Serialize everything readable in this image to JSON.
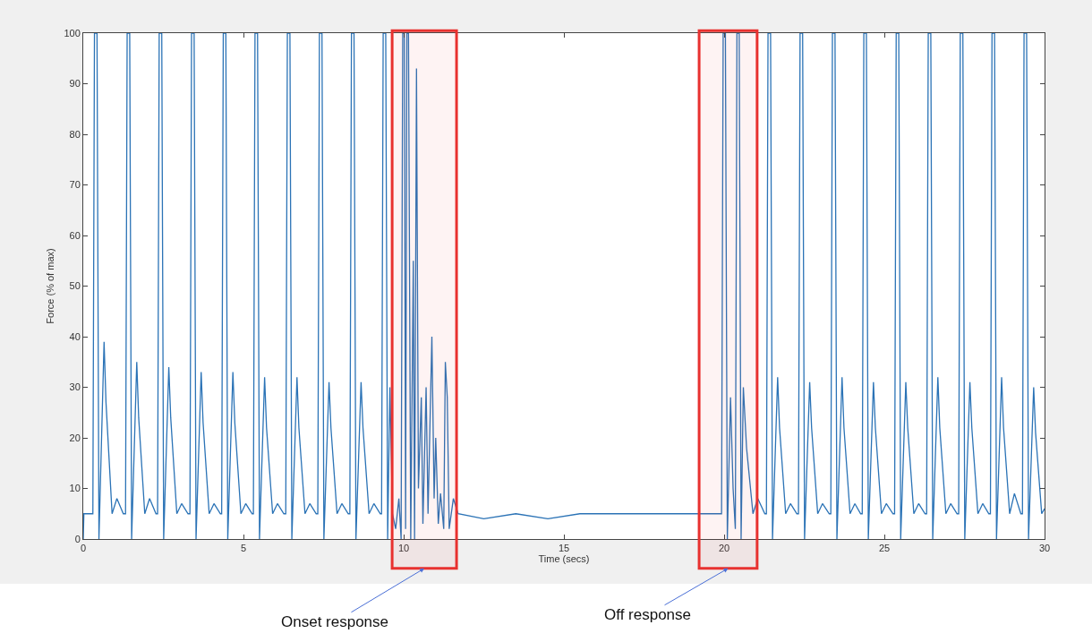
{
  "chart_data": {
    "type": "line",
    "xlabel": "Time (secs)",
    "ylabel": "Force (% of max)",
    "xlim": [
      0,
      30
    ],
    "xticks": [
      0,
      5,
      10,
      15,
      20,
      25,
      30
    ],
    "ylim": [
      0,
      100
    ],
    "yticks": [
      0,
      10,
      20,
      30,
      40,
      50,
      60,
      70,
      80,
      90,
      100
    ],
    "grid": false,
    "marker": "none",
    "line_style": "solid",
    "series": [
      {
        "color": "#2b73b6",
        "x": [
          0,
          0.02,
          0.2,
          0.3,
          0.35,
          0.43,
          0.49,
          0.65,
          0.71,
          0.9,
          1.05,
          1.25,
          1.32,
          1.37,
          1.45,
          1.51,
          1.67,
          1.73,
          1.92,
          2.07,
          2.27,
          2.32,
          2.37,
          2.45,
          2.51,
          2.67,
          2.73,
          2.92,
          3.07,
          3.27,
          3.33,
          3.38,
          3.46,
          3.52,
          3.68,
          3.74,
          3.93,
          4.08,
          4.28,
          4.32,
          4.37,
          4.45,
          4.51,
          4.67,
          4.73,
          4.92,
          5.07,
          5.27,
          5.31,
          5.36,
          5.44,
          5.5,
          5.66,
          5.72,
          5.91,
          6.06,
          6.26,
          6.32,
          6.37,
          6.45,
          6.51,
          6.67,
          6.73,
          6.92,
          7.07,
          7.27,
          7.32,
          7.37,
          7.45,
          7.51,
          7.67,
          7.73,
          7.92,
          8.07,
          8.27,
          8.32,
          8.37,
          8.45,
          8.51,
          8.67,
          8.73,
          8.92,
          9.07,
          9.27,
          9.31,
          9.36,
          9.44,
          9.5,
          9.57,
          9.65,
          9.75,
          9.85,
          9.92,
          9.97,
          10.02,
          10.06,
          10.1,
          10.15,
          10.22,
          10.3,
          10.34,
          10.4,
          10.46,
          10.55,
          10.6,
          10.7,
          10.76,
          10.88,
          10.95,
          11.0,
          11.08,
          11.15,
          11.25,
          11.3,
          11.36,
          11.42,
          11.55,
          11.7,
          12.5,
          13.5,
          14.5,
          15.5,
          16.5,
          17.5,
          18.5,
          19.5,
          19.92,
          19.97,
          20.04,
          20.1,
          20.2,
          20.28,
          20.35,
          20.4,
          20.47,
          20.53,
          20.6,
          20.7,
          20.9,
          21.05,
          21.27,
          21.32,
          21.37,
          21.45,
          21.51,
          21.67,
          21.73,
          21.92,
          22.07,
          22.27,
          22.32,
          22.37,
          22.45,
          22.51,
          22.67,
          22.73,
          22.92,
          23.07,
          23.28,
          23.33,
          23.38,
          23.46,
          23.52,
          23.68,
          23.74,
          23.93,
          24.08,
          24.26,
          24.31,
          24.36,
          24.44,
          24.5,
          24.66,
          24.72,
          24.91,
          25.06,
          25.27,
          25.32,
          25.37,
          25.45,
          25.51,
          25.67,
          25.73,
          25.92,
          26.07,
          26.27,
          26.32,
          26.37,
          26.45,
          26.51,
          26.67,
          26.73,
          26.92,
          27.07,
          27.27,
          27.32,
          27.37,
          27.45,
          27.51,
          27.67,
          27.73,
          27.92,
          28.07,
          28.26,
          28.31,
          28.36,
          28.44,
          28.5,
          28.66,
          28.72,
          28.91,
          29.06,
          29.26,
          29.31,
          29.36,
          29.44,
          29.5,
          29.66,
          29.72,
          29.91,
          30
        ],
        "values": [
          0,
          5,
          5,
          5,
          100,
          100,
          0,
          39,
          27,
          5,
          8,
          5,
          5,
          100,
          100,
          0,
          35,
          24,
          5,
          8,
          5,
          5,
          100,
          100,
          0,
          34,
          24,
          5,
          7,
          5,
          5,
          100,
          100,
          0,
          33,
          23,
          5,
          7,
          5,
          5,
          100,
          100,
          0,
          33,
          23,
          5,
          7,
          5,
          5,
          100,
          100,
          0,
          32,
          22,
          5,
          7,
          5,
          5,
          100,
          100,
          0,
          32,
          22,
          5,
          7,
          5,
          5,
          100,
          100,
          0,
          31,
          22,
          5,
          7,
          5,
          5,
          100,
          100,
          0,
          31,
          22,
          5,
          7,
          5,
          5,
          100,
          100,
          0,
          30,
          5,
          2,
          8,
          0,
          100,
          100,
          2,
          100,
          100,
          0,
          55,
          0,
          93,
          10,
          28,
          3,
          30,
          5,
          40,
          8,
          20,
          3,
          9,
          2,
          35,
          28,
          2,
          8,
          5,
          4,
          5,
          4,
          5,
          5,
          5,
          5,
          5,
          5,
          100,
          100,
          0,
          28,
          10,
          2,
          100,
          100,
          0,
          30,
          18,
          5,
          8,
          5,
          5,
          100,
          100,
          0,
          32,
          22,
          5,
          7,
          5,
          5,
          100,
          100,
          0,
          31,
          22,
          5,
          7,
          5,
          5,
          100,
          100,
          0,
          32,
          22,
          5,
          7,
          5,
          5,
          100,
          100,
          0,
          31,
          22,
          5,
          7,
          5,
          5,
          100,
          100,
          0,
          31,
          22,
          5,
          7,
          5,
          5,
          100,
          100,
          0,
          32,
          22,
          5,
          7,
          5,
          5,
          100,
          100,
          0,
          31,
          22,
          5,
          7,
          5,
          5,
          100,
          100,
          0,
          32,
          22,
          5,
          9,
          5,
          5,
          100,
          100,
          0,
          30,
          21,
          5,
          6
        ]
      }
    ],
    "bands": [
      {
        "axis": "x",
        "from": 9.64,
        "to": 11.65,
        "color": "#e8312f"
      },
      {
        "axis": "x",
        "from": 19.22,
        "to": 21.03,
        "color": "#e8312f"
      }
    ],
    "annotations": [
      "Onset response",
      "Off response"
    ]
  }
}
